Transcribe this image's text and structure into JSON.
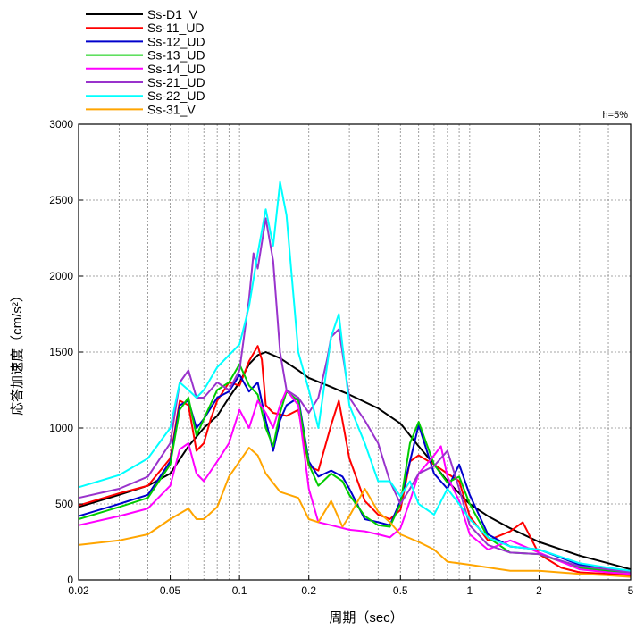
{
  "chart_data": {
    "type": "line",
    "annotation": "h=5%",
    "xlabel": "周期（sec）",
    "ylabel": "応答加速度（cm/s²）",
    "x_scale": "log",
    "xlim": [
      0.02,
      5
    ],
    "ylim": [
      0,
      3000
    ],
    "x_ticks": [
      0.02,
      0.05,
      0.1,
      0.2,
      0.5,
      1,
      2,
      5
    ],
    "x_tick_labels": [
      "0.02",
      "0.05",
      "0.1",
      "0.2",
      "0.5",
      "1",
      "2",
      "5"
    ],
    "y_ticks": [
      0,
      500,
      1000,
      1500,
      2000,
      2500,
      3000
    ],
    "y_tick_labels": [
      "0",
      "500",
      "1000",
      "1500",
      "2000",
      "2500",
      "3000"
    ],
    "grid": true,
    "legend_position": "top-left, above plot",
    "series": [
      {
        "name": "Ss-D1_V",
        "color": "#000000",
        "x": [
          0.02,
          0.03,
          0.04,
          0.05,
          0.06,
          0.07,
          0.08,
          0.09,
          0.1,
          0.11,
          0.12,
          0.13,
          0.15,
          0.18,
          0.2,
          0.25,
          0.3,
          0.4,
          0.5,
          0.6,
          0.7,
          0.8,
          1,
          1.2,
          1.5,
          2,
          3,
          4,
          5
        ],
        "y": [
          480,
          560,
          620,
          700,
          880,
          1000,
          1080,
          1200,
          1300,
          1420,
          1480,
          1500,
          1460,
          1380,
          1330,
          1270,
          1220,
          1130,
          1030,
          880,
          760,
          650,
          500,
          420,
          340,
          250,
          160,
          110,
          70
        ]
      },
      {
        "name": "Ss-11_UD",
        "color": "#ff0000",
        "x": [
          0.02,
          0.03,
          0.04,
          0.05,
          0.055,
          0.06,
          0.065,
          0.07,
          0.075,
          0.08,
          0.09,
          0.1,
          0.11,
          0.12,
          0.125,
          0.13,
          0.14,
          0.16,
          0.18,
          0.2,
          0.22,
          0.25,
          0.27,
          0.3,
          0.35,
          0.4,
          0.45,
          0.5,
          0.55,
          0.6,
          0.7,
          0.8,
          0.9,
          1,
          1.2,
          1.5,
          1.7,
          2,
          2.5,
          3,
          4,
          5
        ],
        "y": [
          490,
          570,
          620,
          800,
          1180,
          1150,
          850,
          900,
          1060,
          1180,
          1300,
          1280,
          1440,
          1540,
          1450,
          1150,
          1100,
          1080,
          1120,
          750,
          720,
          1020,
          1180,
          800,
          520,
          430,
          400,
          460,
          780,
          820,
          760,
          700,
          650,
          420,
          260,
          320,
          380,
          170,
          80,
          50,
          40,
          30
        ]
      },
      {
        "name": "Ss-12_UD",
        "color": "#0000cc",
        "x": [
          0.02,
          0.03,
          0.04,
          0.05,
          0.055,
          0.06,
          0.065,
          0.07,
          0.08,
          0.09,
          0.1,
          0.11,
          0.12,
          0.13,
          0.14,
          0.15,
          0.16,
          0.18,
          0.2,
          0.22,
          0.25,
          0.28,
          0.3,
          0.35,
          0.4,
          0.45,
          0.5,
          0.55,
          0.6,
          0.7,
          0.8,
          0.9,
          1,
          1.2,
          1.5,
          2,
          3,
          4,
          5
        ],
        "y": [
          420,
          500,
          560,
          780,
          1150,
          1180,
          1000,
          1060,
          1200,
          1240,
          1350,
          1240,
          1300,
          1050,
          850,
          1050,
          1150,
          1200,
          780,
          680,
          720,
          680,
          600,
          400,
          380,
          360,
          520,
          780,
          1020,
          700,
          600,
          760,
          560,
          300,
          220,
          200,
          100,
          70,
          50
        ]
      },
      {
        "name": "Ss-13_UD",
        "color": "#00cc00",
        "x": [
          0.02,
          0.03,
          0.04,
          0.05,
          0.055,
          0.06,
          0.065,
          0.07,
          0.08,
          0.09,
          0.1,
          0.11,
          0.12,
          0.13,
          0.14,
          0.15,
          0.16,
          0.18,
          0.2,
          0.22,
          0.25,
          0.28,
          0.3,
          0.35,
          0.4,
          0.45,
          0.5,
          0.55,
          0.6,
          0.7,
          0.8,
          0.9,
          1,
          1.2,
          1.5,
          2,
          3,
          4,
          5
        ],
        "y": [
          400,
          480,
          540,
          760,
          1120,
          1200,
          950,
          1060,
          1250,
          1300,
          1420,
          1280,
          1220,
          1000,
          880,
          1100,
          1240,
          1180,
          760,
          620,
          700,
          650,
          560,
          420,
          360,
          350,
          500,
          900,
          1040,
          760,
          640,
          680,
          500,
          280,
          180,
          170,
          80,
          60,
          40
        ]
      },
      {
        "name": "Ss-14_UD",
        "color": "#ff00ff",
        "x": [
          0.02,
          0.03,
          0.04,
          0.05,
          0.055,
          0.06,
          0.065,
          0.07,
          0.08,
          0.09,
          0.1,
          0.11,
          0.12,
          0.13,
          0.14,
          0.15,
          0.16,
          0.18,
          0.2,
          0.22,
          0.25,
          0.3,
          0.35,
          0.4,
          0.45,
          0.5,
          0.55,
          0.6,
          0.7,
          0.75,
          0.8,
          0.9,
          1,
          1.2,
          1.5,
          2,
          3,
          4,
          5
        ],
        "y": [
          360,
          420,
          470,
          620,
          860,
          900,
          700,
          650,
          780,
          900,
          1120,
          1000,
          1180,
          1100,
          1000,
          1150,
          1250,
          1150,
          600,
          380,
          360,
          330,
          320,
          300,
          280,
          340,
          520,
          700,
          820,
          880,
          680,
          520,
          300,
          200,
          260,
          180,
          70,
          50,
          40
        ]
      },
      {
        "name": "Ss-21_UD",
        "color": "#9933cc",
        "x": [
          0.02,
          0.03,
          0.04,
          0.05,
          0.055,
          0.06,
          0.065,
          0.07,
          0.08,
          0.09,
          0.1,
          0.11,
          0.115,
          0.12,
          0.13,
          0.14,
          0.15,
          0.16,
          0.18,
          0.2,
          0.22,
          0.24,
          0.25,
          0.27,
          0.3,
          0.35,
          0.4,
          0.45,
          0.5,
          0.55,
          0.6,
          0.7,
          0.8,
          0.9,
          1,
          1.2,
          1.5,
          2,
          3,
          4,
          5
        ],
        "y": [
          540,
          600,
          680,
          900,
          1300,
          1380,
          1200,
          1200,
          1300,
          1250,
          1380,
          1850,
          2150,
          2050,
          2380,
          2100,
          1500,
          1250,
          1200,
          1100,
          1200,
          1450,
          1600,
          1650,
          1200,
          1050,
          900,
          650,
          500,
          600,
          700,
          750,
          850,
          600,
          360,
          230,
          180,
          170,
          90,
          70,
          50
        ]
      },
      {
        "name": "Ss-22_UD",
        "color": "#00ffff",
        "x": [
          0.02,
          0.03,
          0.04,
          0.05,
          0.055,
          0.06,
          0.065,
          0.07,
          0.08,
          0.09,
          0.1,
          0.11,
          0.12,
          0.13,
          0.14,
          0.15,
          0.16,
          0.18,
          0.2,
          0.22,
          0.25,
          0.27,
          0.3,
          0.35,
          0.4,
          0.45,
          0.5,
          0.55,
          0.6,
          0.7,
          0.8,
          0.9,
          1,
          1.2,
          1.5,
          2,
          3,
          4,
          5
        ],
        "y": [
          610,
          690,
          800,
          1000,
          1300,
          1250,
          1200,
          1250,
          1400,
          1480,
          1550,
          1800,
          2150,
          2440,
          2200,
          2620,
          2400,
          1500,
          1250,
          1000,
          1600,
          1750,
          1150,
          900,
          650,
          650,
          550,
          650,
          500,
          430,
          600,
          500,
          400,
          280,
          220,
          200,
          110,
          80,
          60
        ]
      },
      {
        "name": "Ss-31_V",
        "color": "#ffa500",
        "x": [
          0.02,
          0.03,
          0.04,
          0.05,
          0.06,
          0.065,
          0.07,
          0.08,
          0.09,
          0.1,
          0.11,
          0.12,
          0.13,
          0.15,
          0.18,
          0.2,
          0.22,
          0.25,
          0.28,
          0.3,
          0.35,
          0.4,
          0.45,
          0.5,
          0.6,
          0.7,
          0.8,
          1,
          1.5,
          2,
          3,
          4,
          5
        ],
        "y": [
          230,
          260,
          300,
          400,
          470,
          400,
          400,
          480,
          680,
          780,
          870,
          820,
          700,
          580,
          540,
          400,
          380,
          520,
          350,
          420,
          600,
          450,
          380,
          300,
          250,
          200,
          120,
          100,
          60,
          60,
          40,
          30,
          20
        ]
      }
    ]
  }
}
